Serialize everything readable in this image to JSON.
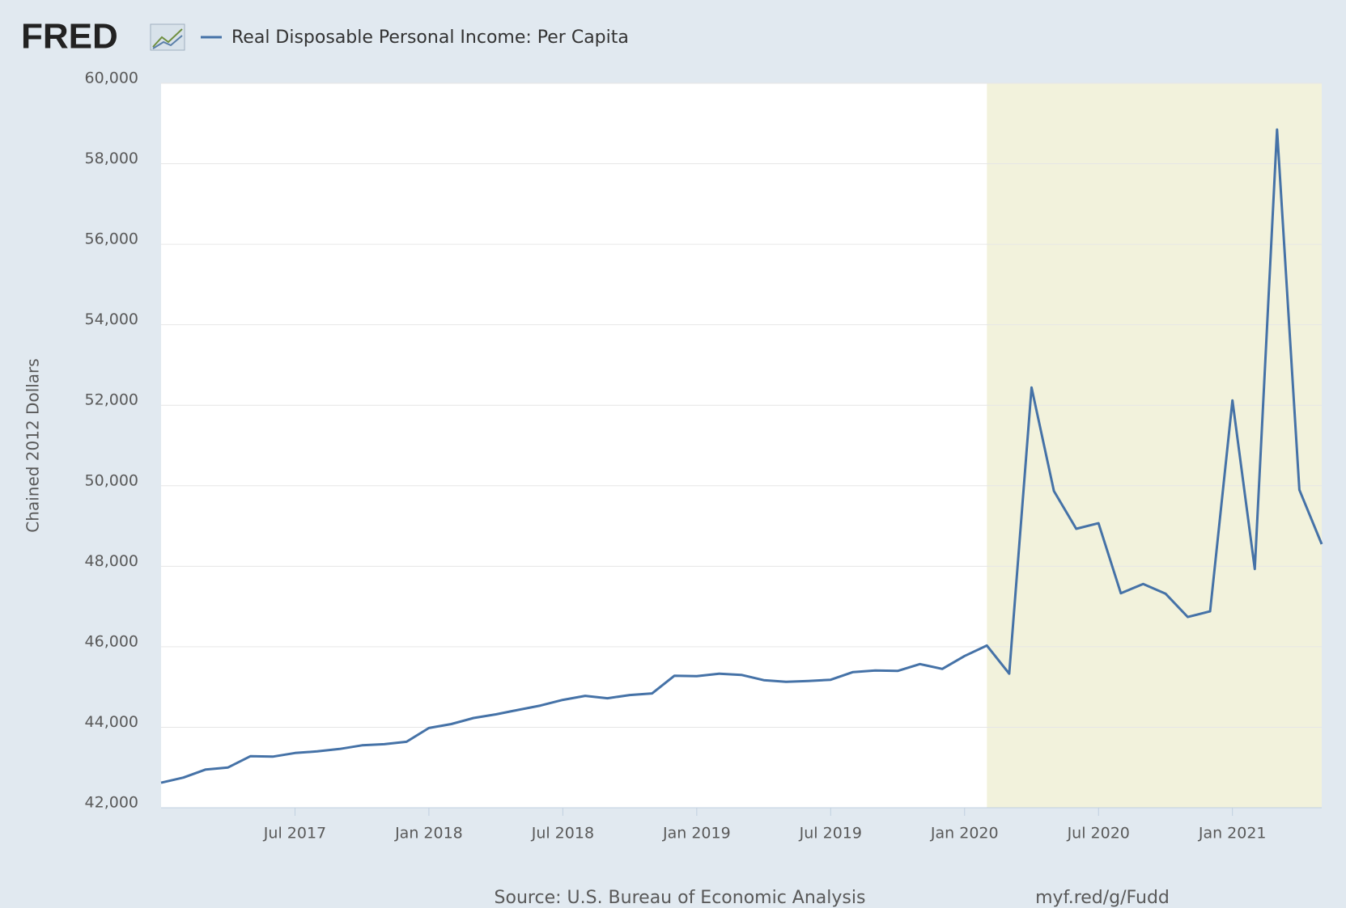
{
  "chart_data": {
    "type": "line",
    "logo": "FRED",
    "ylabel": "Chained 2012 Dollars",
    "source": "Source: U.S. Bureau of Economic Analysis",
    "link": "myf.red/g/Fudd",
    "x": [
      "2017-01",
      "2017-02",
      "2017-03",
      "2017-04",
      "2017-05",
      "2017-06",
      "2017-07",
      "2017-08",
      "2017-09",
      "2017-10",
      "2017-11",
      "2017-12",
      "2018-01",
      "2018-02",
      "2018-03",
      "2018-04",
      "2018-05",
      "2018-06",
      "2018-07",
      "2018-08",
      "2018-09",
      "2018-10",
      "2018-11",
      "2018-12",
      "2019-01",
      "2019-02",
      "2019-03",
      "2019-04",
      "2019-05",
      "2019-06",
      "2019-07",
      "2019-08",
      "2019-09",
      "2019-10",
      "2019-11",
      "2019-12",
      "2020-01",
      "2020-02",
      "2020-03",
      "2020-04",
      "2020-05",
      "2020-06",
      "2020-07",
      "2020-08",
      "2020-09",
      "2020-10",
      "2020-11",
      "2020-12",
      "2021-01",
      "2021-02",
      "2021-03",
      "2021-04",
      "2021-05"
    ],
    "series": [
      {
        "name": "Real Disposable Personal Income: Per Capita",
        "color": "#4572a7",
        "values": [
          42620,
          42750,
          42950,
          43000,
          43280,
          43270,
          43360,
          43400,
          43460,
          43550,
          43580,
          43640,
          43980,
          44080,
          44230,
          44320,
          44430,
          44540,
          44680,
          44780,
          44720,
          44800,
          44840,
          45280,
          45270,
          45330,
          45300,
          45170,
          45130,
          45150,
          45180,
          45370,
          45410,
          45400,
          45570,
          45450,
          45770,
          46030,
          45330,
          52440,
          49870,
          48930,
          49070,
          47330,
          47560,
          47320,
          46740,
          46880,
          52120,
          47930,
          58850,
          49900,
          48550
        ]
      }
    ],
    "shaded_regions": [
      {
        "start": "2020-02",
        "end": "2021-05"
      }
    ],
    "xlim": [
      "2017-01",
      "2021-05"
    ],
    "xticks": [
      {
        "value": "2017-07",
        "label": "Jul 2017"
      },
      {
        "value": "2018-01",
        "label": "Jan 2018"
      },
      {
        "value": "2018-07",
        "label": "Jul 2018"
      },
      {
        "value": "2019-01",
        "label": "Jan 2019"
      },
      {
        "value": "2019-07",
        "label": "Jul 2019"
      },
      {
        "value": "2020-01",
        "label": "Jan 2020"
      },
      {
        "value": "2020-07",
        "label": "Jul 2020"
      },
      {
        "value": "2021-01",
        "label": "Jan 2021"
      }
    ],
    "ylim": [
      42000,
      60000
    ],
    "yticks": [
      {
        "value": 42000,
        "label": "42,000"
      },
      {
        "value": 44000,
        "label": "44,000"
      },
      {
        "value": 46000,
        "label": "46,000"
      },
      {
        "value": 48000,
        "label": "48,000"
      },
      {
        "value": 50000,
        "label": "50,000"
      },
      {
        "value": 52000,
        "label": "52,000"
      },
      {
        "value": 54000,
        "label": "54,000"
      },
      {
        "value": 56000,
        "label": "56,000"
      },
      {
        "value": 58000,
        "label": "58,000"
      },
      {
        "value": 60000,
        "label": "60,000"
      }
    ],
    "grid": true
  }
}
